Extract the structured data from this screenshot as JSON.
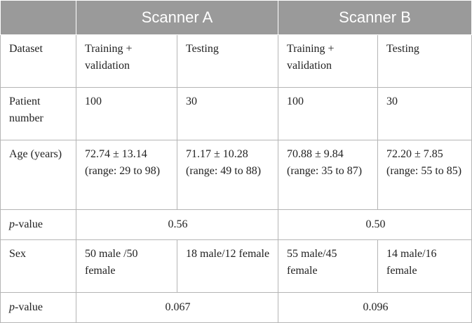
{
  "header": {
    "corner": "",
    "scanner_a": "Scanner A",
    "scanner_b": "Scanner B"
  },
  "rows": {
    "dataset": {
      "label": "Dataset",
      "a_train": "Training + validation",
      "a_test": "Testing",
      "b_train": "Training + validation",
      "b_test": "Testing"
    },
    "patient": {
      "label": "Patient number",
      "a_train": "100",
      "a_test": "30",
      "b_train": "100",
      "b_test": "30"
    },
    "age": {
      "label": "Age (years)",
      "a_train": "72.74 ± 13.14 (range: 29 to 98)",
      "a_test": "71.17 ± 10.28 (range: 49 to 88)",
      "b_train": "70.88 ± 9.84 (range: 35 to 87)",
      "b_test": "72.20 ± 7.85 (range: 55 to 85)"
    },
    "pvalue_age": {
      "label_italic": "p",
      "label_rest": "-value",
      "a": "0.56",
      "b": "0.50"
    },
    "sex": {
      "label": "Sex",
      "a_train": "50 male /50 female",
      "a_test": "18 male/12 female",
      "b_train": "55 male/45 female",
      "b_test": "14 male/16 female"
    },
    "pvalue_sex": {
      "label_italic": "p",
      "label_rest": "-value",
      "a": "0.067",
      "b": "0.096"
    }
  }
}
